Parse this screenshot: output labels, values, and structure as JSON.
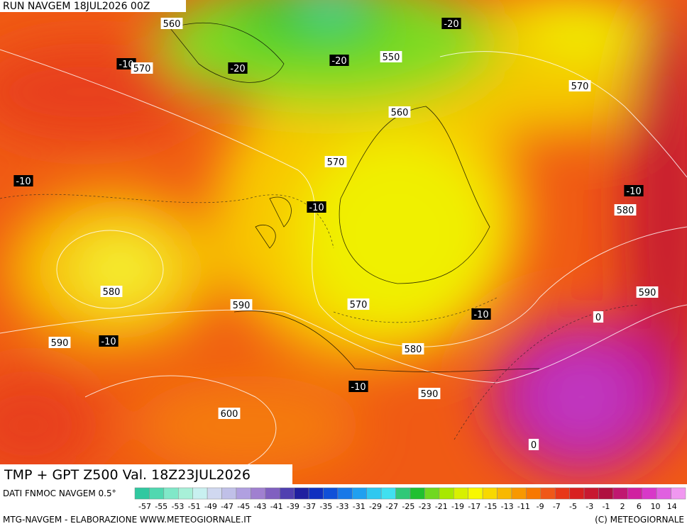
{
  "header": {
    "run": "RUN NAVGEM 18JUL2026 00Z"
  },
  "map": {
    "labels": [
      "560",
      "-10",
      "570",
      "-20",
      "-20",
      "550",
      "-20",
      "570",
      "560",
      "570",
      "-10",
      "-10",
      "-10",
      "580",
      "580",
      "590",
      "570",
      "-10",
      "590",
      "0",
      "590",
      "-10",
      "580",
      "-10",
      "590",
      "600",
      "0"
    ]
  },
  "title": "TMP + GPT Z500 Val. 18Z23JUL2026",
  "legend": {
    "source": "DATI FNMOC NAVGEM 0.5°",
    "labels": [
      "-57",
      "-55",
      "-53",
      "-51",
      "-49",
      "-47",
      "-45",
      "-43",
      "-41",
      "-39",
      "-37",
      "-35",
      "-33",
      "-31",
      "-29",
      "-27",
      "-25",
      "-23",
      "-21",
      "-19",
      "-17",
      "-15",
      "-13",
      "-11",
      "-9",
      "-7",
      "-5",
      "-3",
      "-1",
      "2",
      "6",
      "10",
      "14"
    ]
  },
  "footer": {
    "left": "MTG-NAVGEM - ELABORAZIONE WWW.METEOGIORNALE.IT",
    "right": "(C) METEOGIORNALE"
  }
}
